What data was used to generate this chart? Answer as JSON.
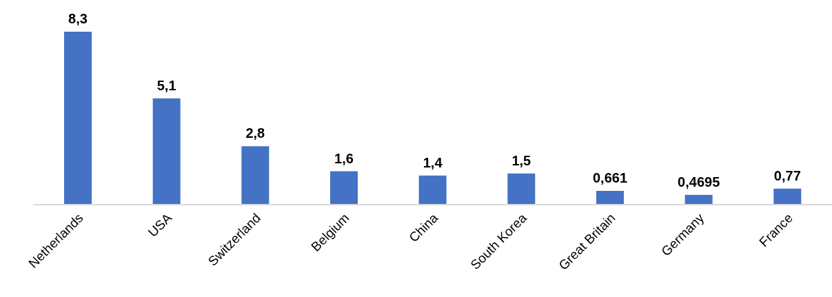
{
  "chart_data": {
    "type": "bar",
    "categories": [
      "Netherlands",
      "USA",
      "Switzerland",
      "Belgium",
      "China",
      "South Korea",
      "Great Britain",
      "Germany",
      "France"
    ],
    "values": [
      8.3,
      5.1,
      2.8,
      1.6,
      1.4,
      1.5,
      0.661,
      0.4695,
      0.77
    ],
    "value_labels": [
      "8,3",
      "5,1",
      "2,8",
      "1,6",
      "1,4",
      "1,5",
      "0,661",
      "0,4695",
      "0,77"
    ],
    "color": "#4472c4",
    "grid": false,
    "legend": false
  }
}
